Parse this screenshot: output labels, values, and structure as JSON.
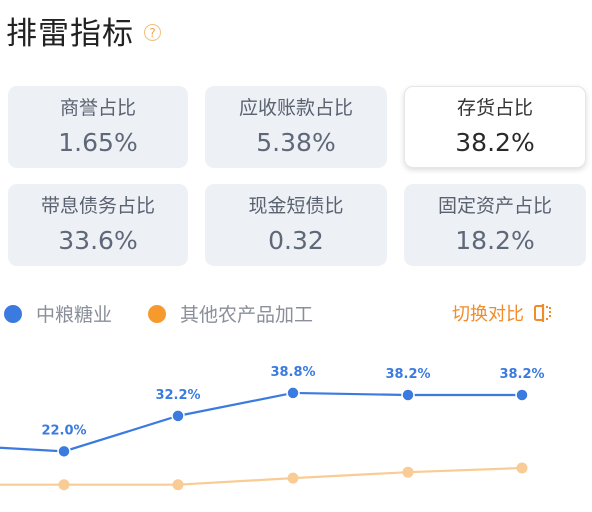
{
  "header": {
    "title": "排雷指标",
    "help_icon": "question-circle-icon",
    "help_glyph": "?"
  },
  "metrics": [
    {
      "label": "商誉占比",
      "value": "1.65%",
      "selected": false
    },
    {
      "label": "应收账款占比",
      "value": "5.38%",
      "selected": false
    },
    {
      "label": "存货占比",
      "value": "38.2%",
      "selected": true
    },
    {
      "label": "带息债务占比",
      "value": "33.6%",
      "selected": false
    },
    {
      "label": "现金短债比",
      "value": "0.32",
      "selected": false
    },
    {
      "label": "固定资产占比",
      "value": "18.2%",
      "selected": false
    }
  ],
  "legend": {
    "series1": {
      "name": "中粮糖业",
      "color": "#3b7be0"
    },
    "series2": {
      "name": "其他农产品加工",
      "color": "#f79a2e"
    }
  },
  "switch_button": {
    "label": "切换对比",
    "icon": "compare-switch-icon",
    "color": "#f08c2a"
  },
  "chart_data": {
    "type": "line",
    "x": [
      1,
      2,
      3,
      4,
      5
    ],
    "series": [
      {
        "name": "中粮糖业",
        "color": "#3b7be0",
        "values": [
          22.0,
          32.2,
          38.8,
          38.2,
          38.2
        ],
        "labels": [
          "22.0%",
          "32.2%",
          "38.8%",
          "38.2%",
          "38.2%"
        ],
        "lead_in": 23.1
      },
      {
        "name": "其他农产品加工",
        "color": "#f9cc95",
        "values": [
          12.4,
          12.4,
          14.3,
          16.0,
          17.2
        ],
        "labels": []
      }
    ],
    "ylim": [
      8,
      50
    ],
    "grid": false
  }
}
